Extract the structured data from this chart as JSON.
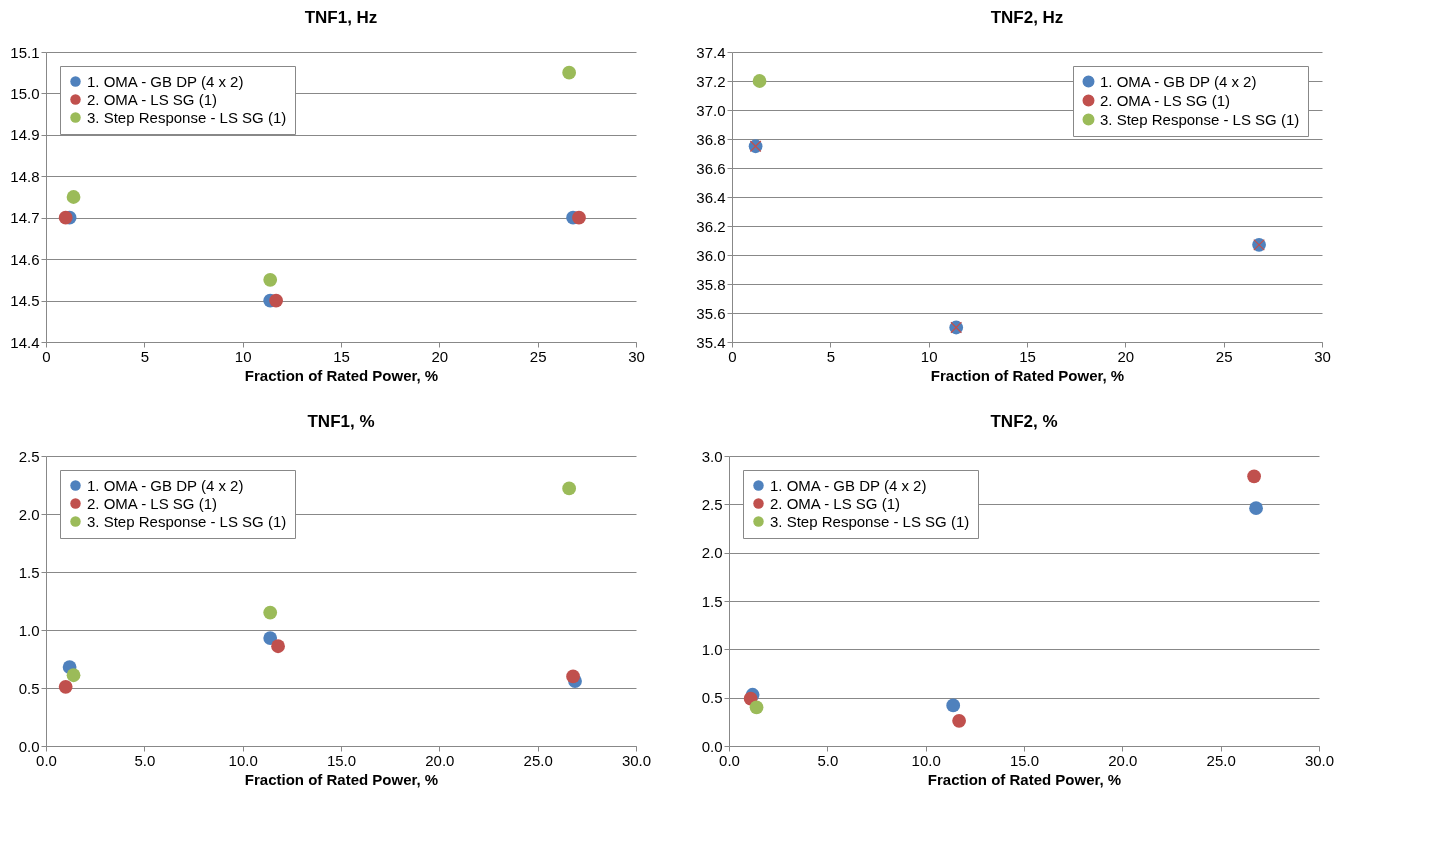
{
  "chart_data": [
    {
      "type": "scatter",
      "title": "TNF1, Hz",
      "xlabel": "Fraction of Rated Power, %",
      "xlim": [
        0,
        30
      ],
      "xticks": [
        0,
        5,
        10,
        15,
        20,
        25,
        30
      ],
      "ylim": [
        14.4,
        15.1
      ],
      "yticks": [
        {
          "value": 14.4,
          "label": "14.4"
        },
        {
          "value": 14.5,
          "label": "14.5"
        },
        {
          "value": 14.6,
          "label": "14.6"
        },
        {
          "value": 14.7,
          "label": "14.7"
        },
        {
          "value": 14.8,
          "label": "14.8"
        },
        {
          "value": 14.9,
          "label": "14.9"
        },
        {
          "value": 15.0,
          "label": "15.0"
        },
        {
          "value": 15.1,
          "label": "15.1"
        }
      ],
      "grid": "y",
      "legend": "top left",
      "marker": "circle",
      "series": [
        {
          "name": "1. OMA - GB DP (4 x 2)",
          "color": "#4f81bd",
          "x": [
            1.2,
            11.4,
            26.8
          ],
          "values": [
            14.7,
            14.5,
            14.7
          ]
        },
        {
          "name": "2. OMA - LS SG (1)",
          "color": "#c0504d",
          "x": [
            1.0,
            11.7,
            27.1
          ],
          "values": [
            14.7,
            14.5,
            14.7
          ]
        },
        {
          "name": "3. Step Response - LS SG (1)",
          "color": "#9bbb59",
          "x": [
            1.4,
            11.4,
            26.6
          ],
          "values": [
            14.75,
            14.55,
            15.05
          ]
        }
      ]
    },
    {
      "type": "scatter",
      "title": "TNF2, Hz",
      "xlabel": "Fraction of Rated Power, %",
      "xlim": [
        0,
        30
      ],
      "xticks": [
        0,
        5,
        10,
        15,
        20,
        25,
        30
      ],
      "ylim": [
        35.4,
        37.4
      ],
      "yticks": [
        {
          "value": 35.4,
          "label": "35.4"
        },
        {
          "value": 35.6,
          "label": "35.6"
        },
        {
          "value": 35.8,
          "label": "35.8"
        },
        {
          "value": 36.0,
          "label": "36.0"
        },
        {
          "value": 36.2,
          "label": "36.2"
        },
        {
          "value": 36.4,
          "label": "36.4"
        },
        {
          "value": 36.6,
          "label": "36.6"
        },
        {
          "value": 36.8,
          "label": "36.8"
        },
        {
          "value": 37.0,
          "label": "37.0"
        },
        {
          "value": 37.2,
          "label": "37.2"
        },
        {
          "value": 37.4,
          "label": "37.4"
        }
      ],
      "grid": "y",
      "legend": "top right",
      "marker": "circle",
      "series": [
        {
          "name": "1. OMA - GB DP (4 x 2)",
          "color": "#4f81bd",
          "x": [
            1.2,
            11.4,
            26.8
          ],
          "values": [
            36.75,
            35.5,
            36.07
          ]
        },
        {
          "name": "2. OMA - LS SG (1)",
          "color": "#c0504d",
          "marker": "cross",
          "x": [
            1.2,
            11.4,
            26.8
          ],
          "values": [
            36.75,
            35.5,
            36.07
          ]
        },
        {
          "name": "3. Step Response - LS SG (1)",
          "color": "#9bbb59",
          "x": [
            1.4
          ],
          "values": [
            37.2
          ]
        }
      ]
    },
    {
      "type": "scatter",
      "title": "TNF1, %",
      "xlabel": "Fraction of Rated Power, %",
      "xlim": [
        0,
        30
      ],
      "xticks": [
        {
          "value": 0,
          "label": "0.0"
        },
        {
          "value": 5,
          "label": "5.0"
        },
        {
          "value": 10,
          "label": "10.0"
        },
        {
          "value": 15,
          "label": "15.0"
        },
        {
          "value": 20,
          "label": "20.0"
        },
        {
          "value": 25,
          "label": "25.0"
        },
        {
          "value": 30,
          "label": "30.0"
        }
      ],
      "ylim": [
        0,
        2.5
      ],
      "yticks": [
        {
          "value": 0,
          "label": "0.0"
        },
        {
          "value": 0.5,
          "label": "0.5"
        },
        {
          "value": 1,
          "label": "1.0"
        },
        {
          "value": 1.5,
          "label": "1.5"
        },
        {
          "value": 2,
          "label": "2.0"
        },
        {
          "value": 2.5,
          "label": "2.5"
        }
      ],
      "grid": "y",
      "legend": "top left",
      "marker": "circle",
      "series": [
        {
          "name": "1. OMA - GB DP (4 x 2)",
          "color": "#4f81bd",
          "x": [
            1.2,
            11.4,
            26.9
          ],
          "values": [
            0.68,
            0.93,
            0.56
          ]
        },
        {
          "name": "2. OMA - LS SG (1)",
          "color": "#c0504d",
          "x": [
            1.0,
            11.8,
            26.8
          ],
          "values": [
            0.51,
            0.86,
            0.6
          ]
        },
        {
          "name": "3. Step Response - LS SG (1)",
          "color": "#9bbb59",
          "x": [
            1.4,
            11.4,
            26.6
          ],
          "values": [
            0.61,
            1.15,
            2.22
          ]
        }
      ]
    },
    {
      "type": "scatter",
      "title": "TNF2, %",
      "xlabel": "Fraction of Rated Power, %",
      "xlim": [
        0,
        30
      ],
      "xticks": [
        {
          "value": 0,
          "label": "0.0"
        },
        {
          "value": 5,
          "label": "5.0"
        },
        {
          "value": 10,
          "label": "10.0"
        },
        {
          "value": 15,
          "label": "15.0"
        },
        {
          "value": 20,
          "label": "20.0"
        },
        {
          "value": 25,
          "label": "25.0"
        },
        {
          "value": 30,
          "label": "30.0"
        }
      ],
      "ylim": [
        0,
        3
      ],
      "yticks": [
        {
          "value": 0,
          "label": "0.0"
        },
        {
          "value": 0.5,
          "label": "0.5"
        },
        {
          "value": 1,
          "label": "1.0"
        },
        {
          "value": 1.5,
          "label": "1.5"
        },
        {
          "value": 2,
          "label": "2.0"
        },
        {
          "value": 2.5,
          "label": "2.5"
        },
        {
          "value": 3,
          "label": "3.0"
        }
      ],
      "grid": "y",
      "legend": "top left",
      "marker": "circle",
      "series": [
        {
          "name": "1. OMA - GB DP (4 x 2)",
          "color": "#4f81bd",
          "x": [
            1.2,
            11.4,
            26.8
          ],
          "values": [
            0.53,
            0.42,
            2.46
          ]
        },
        {
          "name": "2. OMA - LS SG (1)",
          "color": "#c0504d",
          "x": [
            1.1,
            11.7,
            26.7
          ],
          "values": [
            0.49,
            0.26,
            2.79
          ]
        },
        {
          "name": "3. Step Response - LS SG (1)",
          "color": "#9bbb59",
          "x": [
            1.4
          ],
          "values": [
            0.4
          ]
        }
      ]
    }
  ]
}
